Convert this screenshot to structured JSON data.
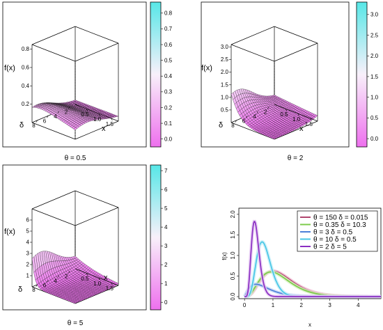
{
  "chart_data": [
    {
      "type": "surface3d",
      "caption": "θ = 0.5",
      "zlabel": "f(x)",
      "xlabel": "x",
      "ylabel": "δ",
      "theta": 0.5,
      "x_ticks": [
        "0.5",
        "1.0",
        "1.5"
      ],
      "y_ticks": [
        "2",
        "4",
        "6",
        "8"
      ],
      "z_ticks": [
        "0.2",
        "0.4",
        "0.6",
        "0.8"
      ],
      "x_range": [
        0.05,
        1.8
      ],
      "y_range": [
        1,
        9
      ],
      "z_range": [
        0,
        0.85
      ],
      "colorbar": {
        "ticks": [
          "0.0",
          "0.1",
          "0.2",
          "0.3",
          "0.4",
          "0.5",
          "0.6",
          "0.7",
          "0.8"
        ],
        "range": [
          -0.05,
          0.87
        ],
        "low_color": "#ee70ee",
        "high_color": "#57e7e7"
      }
    },
    {
      "type": "surface3d",
      "caption": "θ = 2",
      "zlabel": "f(x)",
      "xlabel": "x",
      "ylabel": "δ",
      "theta": 2,
      "x_ticks": [
        "0.5",
        "1.0",
        "1.5"
      ],
      "y_ticks": [
        "2",
        "4",
        "6",
        "8"
      ],
      "z_ticks": [
        "0.5",
        "1.0",
        "1.5",
        "2.0",
        "2.5",
        "3.0"
      ],
      "x_range": [
        0.05,
        1.8
      ],
      "y_range": [
        1,
        9
      ],
      "z_range": [
        0,
        3.1
      ],
      "colorbar": {
        "ticks": [
          "0.0",
          "0.5",
          "1.0",
          "1.5",
          "2.0",
          "2.5",
          "3.0"
        ],
        "range": [
          -0.2,
          3.3
        ],
        "low_color": "#ee70ee",
        "high_color": "#57e7e7"
      }
    },
    {
      "type": "surface3d",
      "caption": "θ = 5",
      "zlabel": "f(x)",
      "xlabel": "x",
      "ylabel": "δ",
      "theta": 5,
      "x_ticks": [
        "0.5",
        "1.0",
        "1.5"
      ],
      "y_ticks": [
        "2",
        "4",
        "6",
        "8"
      ],
      "z_ticks": [
        "1",
        "2",
        "3",
        "4",
        "5",
        "6"
      ],
      "x_range": [
        0.05,
        1.8
      ],
      "y_range": [
        1,
        9
      ],
      "z_range": [
        0,
        7
      ],
      "colorbar": {
        "ticks": [
          "0",
          "1",
          "2",
          "3",
          "4",
          "5",
          "6",
          "7"
        ],
        "range": [
          -0.4,
          7.3
        ],
        "low_color": "#ee70ee",
        "high_color": "#57e7e7"
      }
    },
    {
      "type": "line",
      "xlabel": "x",
      "ylabel": "f(x)",
      "xlim": [
        -0.2,
        4.8
      ],
      "ylim": [
        -0.05,
        2.15
      ],
      "x_ticks": [
        0,
        1,
        2,
        3,
        4
      ],
      "y_ticks": [
        "0.0",
        "0.5",
        "1.0",
        "1.5",
        "2.0"
      ],
      "legend_position": "top-right",
      "series": [
        {
          "legend": "θ = 150  δ = 0.015",
          "theta": 150,
          "delta": 0.015,
          "color": "#b0456e",
          "shadow": "#f0b8d2"
        },
        {
          "legend": "θ = 0.35  δ = 10.3",
          "theta": 0.35,
          "delta": 10.3,
          "color": "#7ccb4a",
          "shadow": "#d5f0bd"
        },
        {
          "legend": "θ = 3  δ = 0.5",
          "theta": 3,
          "delta": 0.5,
          "color": "#4c7fd8",
          "shadow": "#c6d6f6"
        },
        {
          "legend": "θ = 10  δ = 0.5",
          "theta": 10,
          "delta": 0.5,
          "color": "#48c6e6",
          "shadow": "#c3eef8"
        },
        {
          "legend": "θ = 2  δ = 5",
          "theta": 2,
          "delta": 5,
          "color": "#8a2ec2",
          "shadow": "#e5c7f3"
        }
      ]
    }
  ]
}
